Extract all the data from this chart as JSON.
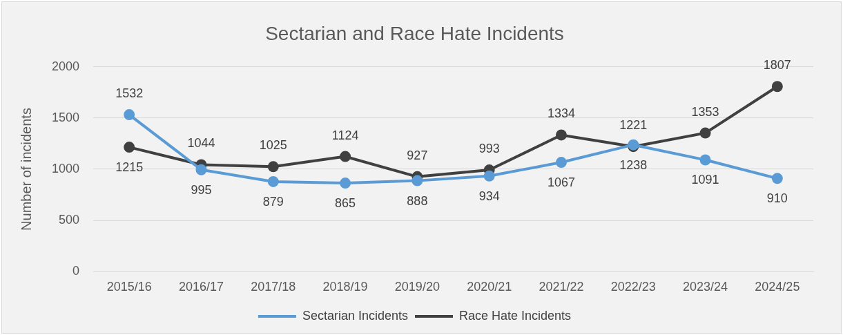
{
  "chart_data": {
    "type": "line",
    "title": "Sectarian and Race Hate Incidents",
    "ylabel": "Number of incidents",
    "categories": [
      "2015/16",
      "2016/17",
      "2017/18",
      "2018/19",
      "2019/20",
      "2020/21",
      "2021/22",
      "2022/23",
      "2023/24",
      "2024/25"
    ],
    "series": [
      {
        "name": "Sectarian Incidents",
        "color": "#5b9bd5",
        "values": [
          1532,
          995,
          879,
          865,
          888,
          934,
          1067,
          1238,
          1091,
          910
        ]
      },
      {
        "name": "Race Hate Incidents",
        "color": "#404040",
        "values": [
          1215,
          1044,
          1025,
          1124,
          927,
          993,
          1334,
          1221,
          1353,
          1807
        ]
      }
    ],
    "ylim": [
      0,
      2000
    ],
    "yticks": [
      0,
      500,
      1000,
      1500,
      2000
    ],
    "grid": "y",
    "legend": "bottom",
    "marker": "circle",
    "line_style": "solid",
    "data_labels": true
  }
}
